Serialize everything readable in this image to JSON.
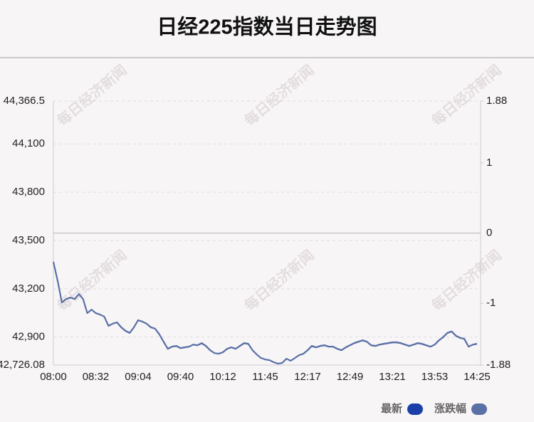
{
  "chart_data": {
    "type": "line",
    "title": "日经225指数当日走势图",
    "watermark": "每日经济新闻",
    "categories": [
      "08:00",
      null,
      null,
      null,
      null,
      null,
      null,
      null,
      null,
      null,
      "08:32",
      null,
      null,
      null,
      null,
      null,
      null,
      null,
      null,
      null,
      "09:04",
      null,
      null,
      null,
      null,
      null,
      null,
      null,
      null,
      null,
      "09:40",
      null,
      null,
      null,
      null,
      null,
      null,
      null,
      null,
      null,
      "10:12",
      null,
      null,
      null,
      null,
      null,
      null,
      null,
      null,
      null,
      "11:45",
      null,
      null,
      null,
      null,
      null,
      null,
      null,
      null,
      null,
      "12:17",
      null,
      null,
      null,
      null,
      null,
      null,
      null,
      null,
      null,
      "12:49",
      null,
      null,
      null,
      null,
      null,
      null,
      null,
      null,
      null,
      "13:21",
      null,
      null,
      null,
      null,
      null,
      null,
      null,
      null,
      null,
      "13:53",
      null,
      null,
      null,
      null,
      null,
      null,
      null,
      null,
      null,
      "14:25"
    ],
    "series": [
      {
        "name": "最新",
        "color": "#1a3fa8",
        "axis": "y",
        "values": [
          43367,
          43248,
          43115,
          43137,
          43146,
          43137,
          43168,
          43137,
          43049,
          43071,
          43049,
          43040,
          43027,
          42969,
          42983,
          42991,
          42960,
          42938,
          42925,
          42960,
          43005,
          42996,
          42983,
          42960,
          42952,
          42916,
          42872,
          42828,
          42841,
          42846,
          42832,
          42837,
          42841,
          42854,
          42850,
          42863,
          42846,
          42819,
          42801,
          42797,
          42806,
          42828,
          42837,
          42828,
          42846,
          42863,
          42859,
          42819,
          42792,
          42770,
          42761,
          42757,
          42744,
          42735,
          42739,
          42766,
          42753,
          42770,
          42788,
          42797,
          42819,
          42846,
          42837,
          42846,
          42850,
          42841,
          42841,
          42828,
          42819,
          42837,
          42850,
          42863,
          42872,
          42881,
          42872,
          42850,
          42846,
          42854,
          42859,
          42863,
          42868,
          42868,
          42863,
          42854,
          42846,
          42854,
          42863,
          42859,
          42850,
          42841,
          42854,
          42881,
          42898,
          42925,
          42934,
          42907,
          42894,
          42890,
          42841,
          42854,
          42859
        ]
      },
      {
        "name": "涨跌幅",
        "color": "#5a71a6",
        "axis": "y2",
        "values": [
          -0.41,
          -0.68,
          -0.99,
          -0.94,
          -0.92,
          -0.94,
          -0.87,
          -0.94,
          -1.14,
          -1.09,
          -1.14,
          -1.16,
          -1.19,
          -1.32,
          -1.29,
          -1.27,
          -1.34,
          -1.39,
          -1.42,
          -1.34,
          -1.24,
          -1.26,
          -1.29,
          -1.34,
          -1.36,
          -1.44,
          -1.55,
          -1.65,
          -1.62,
          -1.61,
          -1.64,
          -1.63,
          -1.62,
          -1.59,
          -1.6,
          -1.57,
          -1.61,
          -1.67,
          -1.71,
          -1.72,
          -1.7,
          -1.65,
          -1.63,
          -1.65,
          -1.61,
          -1.57,
          -1.58,
          -1.67,
          -1.73,
          -1.78,
          -1.8,
          -1.81,
          -1.84,
          -1.86,
          -1.85,
          -1.79,
          -1.82,
          -1.78,
          -1.74,
          -1.72,
          -1.67,
          -1.61,
          -1.63,
          -1.61,
          -1.6,
          -1.62,
          -1.62,
          -1.65,
          -1.67,
          -1.63,
          -1.6,
          -1.57,
          -1.55,
          -1.53,
          -1.55,
          -1.6,
          -1.61,
          -1.59,
          -1.58,
          -1.57,
          -1.56,
          -1.56,
          -1.57,
          -1.59,
          -1.61,
          -1.59,
          -1.57,
          -1.58,
          -1.6,
          -1.62,
          -1.59,
          -1.53,
          -1.48,
          -1.42,
          -1.4,
          -1.46,
          -1.49,
          -1.51,
          -1.62,
          -1.59,
          -1.58
        ]
      }
    ],
    "ylim": [
      42726.08,
      44366.5
    ],
    "yticks": [
      {
        "value": 42726.08,
        "label": "42,726.08"
      },
      {
        "value": 42900,
        "label": "42,900"
      },
      {
        "value": 43200,
        "label": "43,200"
      },
      {
        "value": 43500,
        "label": "43,500"
      },
      {
        "value": 43800,
        "label": "43,800"
      },
      {
        "value": 44100,
        "label": "44,100"
      },
      {
        "value": 44366.5,
        "label": "44,366.5"
      }
    ],
    "y2lim": [
      -1.88,
      1.88
    ],
    "y2ticks": [
      -1.88,
      -1,
      0,
      1,
      1.88
    ],
    "grid": true,
    "legend": "bottom-right"
  }
}
